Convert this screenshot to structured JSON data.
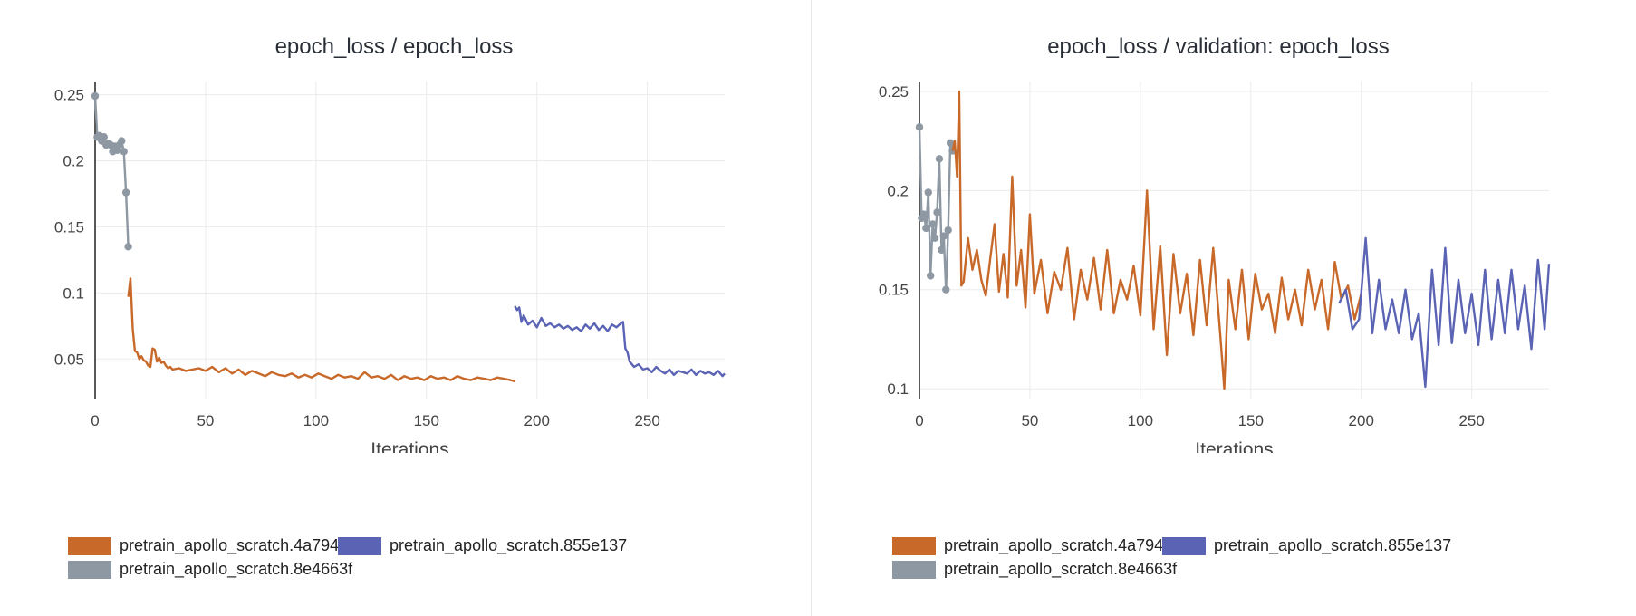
{
  "colors": {
    "orange": "#c8692a",
    "blue": "#5b64b4",
    "gray": "#8e98a3"
  },
  "chart_data": [
    {
      "type": "line",
      "title": "epoch_loss / epoch_loss",
      "xlabel": "Iterations",
      "ylabel": "",
      "xlim": [
        0,
        285
      ],
      "ylim": [
        0.02,
        0.26
      ],
      "grid": true,
      "legend_placement": "bottom",
      "x_ticks": [
        0,
        50,
        100,
        150,
        200,
        250
      ],
      "x_tick_labels": [
        "0",
        "50",
        "100",
        "150",
        "200",
        "250"
      ],
      "y_ticks": [
        0.05,
        0.1,
        0.15,
        0.2,
        0.25
      ],
      "y_tick_labels": [
        "0.05",
        "0.1",
        "0.15",
        "0.2",
        "0.25"
      ],
      "series": [
        {
          "name": "pretrain_apollo_scratch.8e4663f",
          "color": "#8e98a3",
          "markers": true,
          "x": [
            0,
            1,
            2,
            3,
            4,
            5,
            6,
            7,
            8,
            9,
            10,
            11,
            12,
            13,
            14,
            15
          ],
          "y": [
            0.249,
            0.218,
            0.219,
            0.215,
            0.218,
            0.212,
            0.213,
            0.212,
            0.207,
            0.211,
            0.208,
            0.212,
            0.215,
            0.207,
            0.176,
            0.135
          ]
        },
        {
          "name": "pretrain_apollo_scratch.4a79495",
          "color": "#c8692a",
          "markers": false,
          "x": [
            15,
            16,
            17,
            18,
            19,
            20,
            21,
            22,
            23,
            24,
            25,
            26,
            27,
            28,
            29,
            30,
            31,
            32,
            33,
            34,
            35,
            38,
            41,
            44,
            47,
            50,
            53,
            56,
            59,
            62,
            65,
            68,
            71,
            74,
            77,
            80,
            83,
            86,
            89,
            92,
            95,
            98,
            101,
            104,
            107,
            110,
            113,
            116,
            119,
            122,
            125,
            128,
            131,
            134,
            137,
            140,
            143,
            146,
            149,
            152,
            155,
            158,
            161,
            164,
            167,
            170,
            173,
            176,
            179,
            182,
            185,
            188,
            190
          ],
          "y": [
            0.097,
            0.111,
            0.073,
            0.056,
            0.055,
            0.05,
            0.052,
            0.049,
            0.048,
            0.045,
            0.044,
            0.058,
            0.057,
            0.048,
            0.051,
            0.047,
            0.048,
            0.045,
            0.043,
            0.044,
            0.042,
            0.043,
            0.041,
            0.042,
            0.043,
            0.041,
            0.044,
            0.04,
            0.043,
            0.039,
            0.042,
            0.038,
            0.041,
            0.039,
            0.037,
            0.04,
            0.038,
            0.037,
            0.039,
            0.036,
            0.038,
            0.036,
            0.039,
            0.037,
            0.035,
            0.038,
            0.036,
            0.037,
            0.035,
            0.04,
            0.036,
            0.037,
            0.035,
            0.038,
            0.034,
            0.037,
            0.035,
            0.036,
            0.034,
            0.037,
            0.035,
            0.036,
            0.034,
            0.037,
            0.035,
            0.034,
            0.036,
            0.035,
            0.034,
            0.036,
            0.035,
            0.034,
            0.033
          ]
        },
        {
          "name": "pretrain_apollo_scratch.855e137",
          "color": "#5b64b4",
          "markers": false,
          "x": [
            190,
            191,
            192,
            193,
            194,
            196,
            198,
            200,
            202,
            204,
            206,
            208,
            210,
            212,
            214,
            216,
            218,
            220,
            222,
            224,
            226,
            228,
            230,
            232,
            234,
            236,
            238,
            239,
            240,
            241,
            242,
            244,
            246,
            248,
            250,
            252,
            254,
            256,
            258,
            260,
            262,
            264,
            266,
            268,
            270,
            272,
            274,
            276,
            278,
            280,
            282,
            284,
            285
          ],
          "y": [
            0.09,
            0.087,
            0.089,
            0.078,
            0.083,
            0.076,
            0.079,
            0.074,
            0.081,
            0.075,
            0.077,
            0.074,
            0.076,
            0.073,
            0.075,
            0.072,
            0.074,
            0.071,
            0.076,
            0.073,
            0.077,
            0.072,
            0.075,
            0.071,
            0.076,
            0.074,
            0.077,
            0.078,
            0.058,
            0.055,
            0.048,
            0.044,
            0.046,
            0.042,
            0.043,
            0.04,
            0.044,
            0.041,
            0.039,
            0.042,
            0.038,
            0.041,
            0.04,
            0.039,
            0.042,
            0.038,
            0.041,
            0.039,
            0.04,
            0.038,
            0.041,
            0.037,
            0.039
          ]
        }
      ]
    },
    {
      "type": "line",
      "title": "epoch_loss / validation: epoch_loss",
      "xlabel": "Iterations",
      "ylabel": "",
      "xlim": [
        0,
        285
      ],
      "ylim": [
        0.095,
        0.255
      ],
      "grid": true,
      "legend_placement": "bottom",
      "x_ticks": [
        0,
        50,
        100,
        150,
        200,
        250
      ],
      "x_tick_labels": [
        "0",
        "50",
        "100",
        "150",
        "200",
        "250"
      ],
      "y_ticks": [
        0.1,
        0.15,
        0.2,
        0.25
      ],
      "y_tick_labels": [
        "0.1",
        "0.15",
        "0.2",
        "0.25"
      ],
      "series": [
        {
          "name": "pretrain_apollo_scratch.8e4663f",
          "color": "#8e98a3",
          "markers": true,
          "x": [
            0,
            1,
            2,
            3,
            4,
            5,
            6,
            7,
            8,
            9,
            10,
            11,
            12,
            13,
            14,
            15
          ],
          "y": [
            0.232,
            0.186,
            0.188,
            0.181,
            0.199,
            0.157,
            0.183,
            0.176,
            0.189,
            0.216,
            0.17,
            0.177,
            0.15,
            0.18,
            0.224,
            0.22
          ]
        },
        {
          "name": "pretrain_apollo_scratch.4a79495",
          "color": "#c8692a",
          "markers": false,
          "x": [
            15,
            16,
            17,
            18,
            19,
            20,
            22,
            24,
            26,
            28,
            30,
            32,
            34,
            36,
            38,
            40,
            42,
            44,
            46,
            48,
            50,
            52,
            55,
            58,
            61,
            64,
            67,
            70,
            73,
            76,
            79,
            82,
            85,
            88,
            91,
            94,
            97,
            100,
            103,
            106,
            109,
            112,
            115,
            118,
            121,
            124,
            127,
            130,
            133,
            136,
            138,
            140,
            143,
            146,
            149,
            152,
            155,
            158,
            161,
            164,
            167,
            170,
            173,
            176,
            179,
            182,
            185,
            188,
            191,
            194,
            197,
            200
          ],
          "y": [
            0.22,
            0.225,
            0.207,
            0.25,
            0.152,
            0.154,
            0.176,
            0.16,
            0.17,
            0.155,
            0.147,
            0.165,
            0.183,
            0.149,
            0.168,
            0.146,
            0.207,
            0.152,
            0.17,
            0.141,
            0.188,
            0.148,
            0.165,
            0.138,
            0.159,
            0.15,
            0.171,
            0.135,
            0.16,
            0.145,
            0.166,
            0.14,
            0.17,
            0.138,
            0.155,
            0.145,
            0.162,
            0.137,
            0.2,
            0.13,
            0.172,
            0.117,
            0.168,
            0.138,
            0.158,
            0.127,
            0.165,
            0.132,
            0.171,
            0.13,
            0.1,
            0.155,
            0.13,
            0.16,
            0.125,
            0.158,
            0.14,
            0.148,
            0.128,
            0.156,
            0.135,
            0.15,
            0.132,
            0.16,
            0.14,
            0.155,
            0.13,
            0.164,
            0.145,
            0.152,
            0.135,
            0.148
          ]
        },
        {
          "name": "pretrain_apollo_scratch.855e137",
          "color": "#5b64b4",
          "markers": false,
          "x": [
            190,
            193,
            196,
            199,
            202,
            205,
            208,
            211,
            214,
            217,
            220,
            223,
            226,
            229,
            232,
            235,
            238,
            241,
            244,
            247,
            250,
            253,
            256,
            259,
            262,
            265,
            268,
            271,
            274,
            277,
            280,
            283,
            285
          ],
          "y": [
            0.143,
            0.15,
            0.13,
            0.135,
            0.176,
            0.128,
            0.155,
            0.13,
            0.145,
            0.128,
            0.15,
            0.125,
            0.138,
            0.101,
            0.16,
            0.122,
            0.171,
            0.123,
            0.155,
            0.128,
            0.148,
            0.122,
            0.16,
            0.125,
            0.155,
            0.128,
            0.16,
            0.13,
            0.152,
            0.12,
            0.165,
            0.13,
            0.163
          ]
        }
      ]
    }
  ],
  "legend": {
    "items": [
      {
        "label": "pretrain_apollo_scratch.4a79495",
        "color": "#c8692a"
      },
      {
        "label": "pretrain_apollo_scratch.855e137",
        "color": "#5b64b4"
      },
      {
        "label": "pretrain_apollo_scratch.8e4663f",
        "color": "#8e98a3"
      }
    ]
  }
}
